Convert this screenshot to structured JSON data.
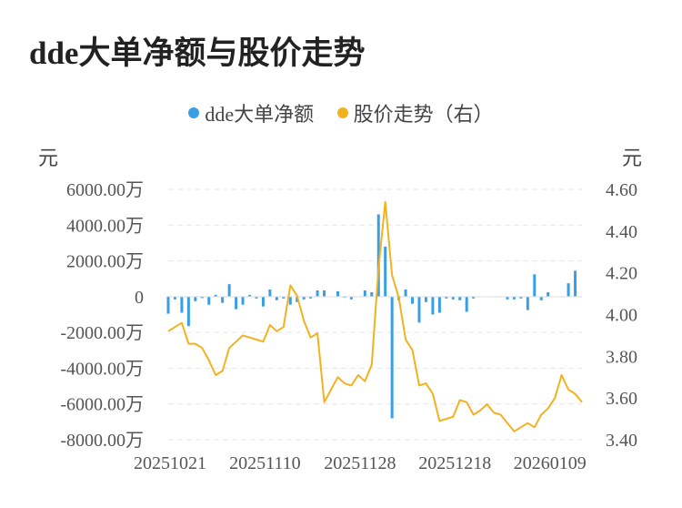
{
  "chart_data": {
    "type": "bar",
    "title": "dde大单净额与股价走势",
    "legend": [
      "dde大单净额",
      "股价走势（右）"
    ],
    "left_unit": "元",
    "right_unit": "元",
    "y_left_ticks": [
      "6000.00万",
      "4000.00万",
      "2000.00万",
      "0",
      "-2000.00万",
      "-4000.00万",
      "-6000.00万",
      "-8000.00万"
    ],
    "y_right_ticks": [
      "4.60",
      "4.40",
      "4.20",
      "4.00",
      "3.80",
      "3.60",
      "3.40"
    ],
    "ylim_left": [
      -8000,
      6000
    ],
    "ylim_right": [
      3.4,
      4.6
    ],
    "x_tick_labels": [
      "20251021",
      "20251110",
      "20251128",
      "20251218",
      "20260109"
    ],
    "x_tick_index": [
      0,
      14,
      28,
      42,
      56
    ],
    "series": [
      {
        "name": "dde大单净额",
        "type": "bar",
        "color": "#3a9ee4",
        "values": [
          -950,
          -150,
          -900,
          -1650,
          -250,
          -80,
          -450,
          100,
          -350,
          700,
          -700,
          -450,
          100,
          -100,
          -550,
          400,
          -200,
          -100,
          -450,
          -300,
          -150,
          -100,
          350,
          350,
          0,
          300,
          -50,
          -150,
          0,
          350,
          250,
          4600,
          2800,
          -6800,
          -200,
          400,
          -400,
          -1450,
          -300,
          -1000,
          -900,
          -100,
          -150,
          -200,
          -850,
          -100,
          0,
          0,
          0,
          0,
          -150,
          -150,
          -100,
          -750,
          1250,
          -200,
          250,
          0,
          0,
          750,
          1450,
          0
        ],
        "unit": "万元"
      },
      {
        "name": "股价走势（右）",
        "type": "line",
        "color": "#f2b21f",
        "values": [
          3.92,
          3.94,
          3.96,
          3.86,
          3.86,
          3.84,
          3.78,
          3.71,
          3.73,
          3.84,
          3.87,
          3.9,
          3.89,
          3.88,
          3.87,
          3.95,
          3.92,
          3.94,
          4.14,
          4.09,
          3.97,
          3.89,
          3.91,
          3.58,
          3.64,
          3.7,
          3.67,
          3.66,
          3.71,
          3.68,
          3.76,
          4.22,
          4.54,
          4.19,
          4.08,
          3.88,
          3.83,
          3.66,
          3.67,
          3.62,
          3.49,
          3.5,
          3.51,
          3.59,
          3.58,
          3.52,
          3.54,
          3.57,
          3.53,
          3.52,
          3.48,
          3.44,
          3.46,
          3.48,
          3.46,
          3.52,
          3.55,
          3.6,
          3.71,
          3.64,
          3.62,
          3.58
        ]
      }
    ],
    "grid": true
  }
}
